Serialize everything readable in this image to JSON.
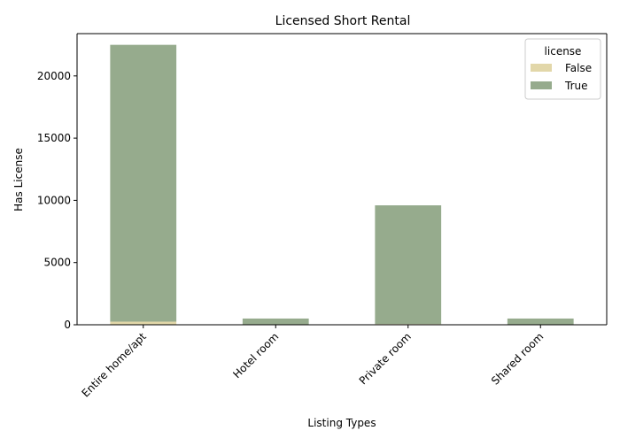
{
  "chart_data": {
    "type": "bar",
    "stacked": true,
    "title": "Licensed Short Rental",
    "xlabel": "Listing Types",
    "ylabel": "Has License",
    "categories": [
      "Entire home/apt",
      "Hotel room",
      "Private room",
      "Shared room"
    ],
    "ylim": [
      0,
      23400
    ],
    "yticks": [
      0,
      5000,
      10000,
      15000,
      20000
    ],
    "grid": false,
    "legend": {
      "title": "license",
      "placement": "top-right"
    },
    "series": [
      {
        "name": "False",
        "color": "#e2d7a9",
        "values": [
          250,
          5,
          60,
          5
        ]
      },
      {
        "name": "True",
        "color": "#96ab8d",
        "values": [
          22250,
          495,
          9540,
          495
        ]
      }
    ]
  }
}
